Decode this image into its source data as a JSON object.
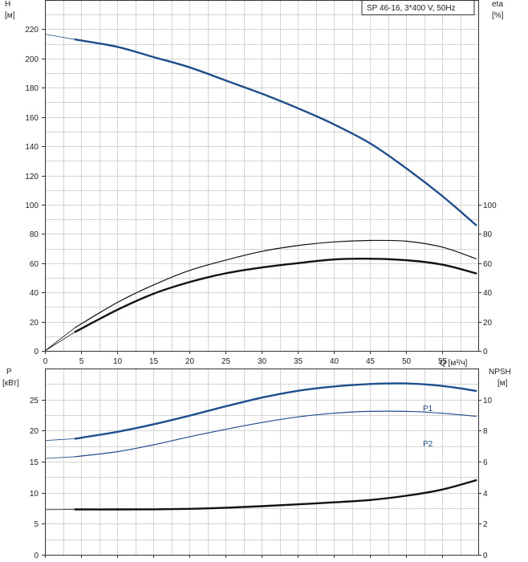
{
  "chart_data": [
    {
      "type": "line",
      "panel": "top",
      "legend_text": "SP 46-16, 3*400 V, 50Hz",
      "x_label": "Q [м³/ч]",
      "x_ticks": [
        0,
        5,
        10,
        15,
        20,
        25,
        30,
        35,
        40,
        45,
        50,
        55
      ],
      "xlim": [
        0,
        60
      ],
      "left_axis": {
        "label_line1": "H",
        "label_line2": "[м]",
        "ylim": [
          0,
          240
        ],
        "ticks": [
          0,
          20,
          40,
          60,
          80,
          100,
          120,
          140,
          160,
          180,
          200,
          220
        ]
      },
      "right_axis": {
        "label_line1": "eta",
        "label_line2": "[%]",
        "ylim": [
          0,
          240
        ],
        "ticks": [
          0,
          20,
          40,
          60,
          80,
          100
        ]
      },
      "grid": true,
      "series": [
        {
          "axis": "left",
          "color": "#1f4e8c",
          "width": 2.4,
          "extension_x": [
            0,
            4.2
          ],
          "x": [
            4.2,
            10,
            15,
            20,
            25,
            30,
            35,
            40,
            45,
            50,
            55,
            59.7
          ],
          "y": [
            213,
            208,
            201,
            194,
            185,
            176,
            166,
            155,
            142,
            125,
            106,
            86
          ]
        },
        {
          "axis": "right",
          "color": "#111111",
          "width": 1.2,
          "extension_x": [
            0,
            4.2
          ],
          "x": [
            0,
            4.2,
            10,
            15,
            20,
            25,
            30,
            35,
            40,
            45,
            50,
            55,
            59.7
          ],
          "y": [
            0,
            16,
            33,
            45,
            55,
            62,
            68,
            72,
            74.5,
            75.5,
            75,
            71,
            63
          ]
        },
        {
          "axis": "right",
          "color": "#111111",
          "width": 2.4,
          "extension_x": [
            0,
            4.2
          ],
          "x": [
            0,
            4.2,
            10,
            15,
            20,
            25,
            30,
            35,
            40,
            45,
            50,
            55,
            59.7
          ],
          "y": [
            0,
            13,
            28,
            39,
            47,
            53,
            57,
            60,
            62.5,
            63,
            62,
            59,
            53
          ]
        }
      ]
    },
    {
      "type": "line",
      "panel": "bottom",
      "x_ticks": [
        0,
        5,
        10,
        15,
        20,
        25,
        30,
        35,
        40,
        45,
        50,
        55
      ],
      "xlim": [
        0,
        60
      ],
      "left_axis": {
        "label_line1": "P",
        "label_line2": "[кВт]",
        "ylim": [
          0,
          30
        ],
        "ticks": [
          0,
          5,
          10,
          15,
          20,
          25
        ]
      },
      "right_axis": {
        "label_line1": "NPSH",
        "label_line2": "[м]",
        "ylim": [
          0,
          12
        ],
        "ticks": [
          0,
          2,
          4,
          6,
          8,
          10
        ]
      },
      "grid": true,
      "series": [
        {
          "name": "P1",
          "axis": "left",
          "color": "#1f4e8c",
          "width": 2.4,
          "extension_x": [
            0,
            4.2
          ],
          "x": [
            0,
            4.2,
            10,
            15,
            20,
            25,
            30,
            35,
            40,
            45,
            50,
            55,
            59.7
          ],
          "y": [
            18.4,
            18.7,
            19.8,
            21.0,
            22.4,
            23.9,
            25.3,
            26.4,
            27.1,
            27.5,
            27.6,
            27.2,
            26.4
          ]
        },
        {
          "name": "P2",
          "axis": "left",
          "color": "#1f4e8c",
          "width": 1.2,
          "extension_x": [
            0,
            4.2
          ],
          "x": [
            0,
            4.2,
            10,
            15,
            20,
            25,
            30,
            35,
            40,
            45,
            50,
            55,
            59.7
          ],
          "y": [
            15.5,
            15.8,
            16.6,
            17.7,
            19.0,
            20.2,
            21.3,
            22.2,
            22.8,
            23.1,
            23.1,
            22.8,
            22.3
          ]
        },
        {
          "axis": "right",
          "color": "#111111",
          "width": 2.4,
          "extension_x": [
            0,
            4.2
          ],
          "x": [
            0,
            4.2,
            10,
            15,
            20,
            25,
            30,
            35,
            40,
            45,
            50,
            55,
            59.7
          ],
          "y": [
            2.9,
            2.92,
            2.92,
            2.93,
            2.96,
            3.03,
            3.13,
            3.25,
            3.38,
            3.53,
            3.8,
            4.2,
            4.8
          ]
        }
      ]
    }
  ]
}
